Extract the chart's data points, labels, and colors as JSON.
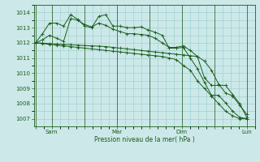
{
  "background_color": "#cce8e8",
  "grid_color": "#99cccc",
  "line_color": "#1a5c1a",
  "xlabel": "Pression niveau de la mer( hPa )",
  "ylim": [
    1006.5,
    1014.5
  ],
  "yticks": [
    1007,
    1008,
    1009,
    1010,
    1011,
    1012,
    1013,
    1014
  ],
  "xtick_labels": [
    "",
    "Sam",
    "",
    "Mar",
    "",
    "Dim",
    "",
    "Lun"
  ],
  "xtick_positions": [
    0,
    1,
    3,
    5,
    7,
    9,
    11,
    13
  ],
  "series": [
    [
      1012.0,
      1012.6,
      1013.3,
      1013.3,
      1013.1,
      1013.85,
      1013.55,
      1013.1,
      1013.0,
      1013.75,
      1013.85,
      1013.1,
      1013.1,
      1013.0,
      1013.0,
      1013.05,
      1012.85,
      1012.7,
      1012.5,
      1011.65,
      1011.65,
      1011.7,
      1011.0,
      1010.3,
      1009.4,
      1008.55,
      1008.55,
      1008.05,
      1007.5,
      1007.1,
      1007.0
    ],
    [
      1012.0,
      1012.2,
      1012.5,
      1012.3,
      1012.1,
      1013.6,
      1013.5,
      1013.2,
      1013.05,
      1013.3,
      1013.15,
      1012.9,
      1012.75,
      1012.6,
      1012.6,
      1012.55,
      1012.5,
      1012.3,
      1012.0,
      1011.7,
      1011.7,
      1011.8,
      1011.5,
      1011.1,
      1009.7,
      1009.2,
      1009.2,
      1009.2,
      1008.6,
      1008.0,
      1007.1
    ],
    [
      1012.0,
      1011.95,
      1011.9,
      1011.85,
      1011.8,
      1011.75,
      1011.7,
      1011.65,
      1011.6,
      1011.55,
      1011.5,
      1011.45,
      1011.4,
      1011.35,
      1011.3,
      1011.25,
      1011.2,
      1011.15,
      1011.1,
      1011.0,
      1010.9,
      1010.5,
      1010.2,
      1009.5,
      1009.0,
      1008.5,
      1008.0,
      1007.5,
      1007.2,
      1007.0,
      1007.0
    ],
    [
      1012.0,
      1011.98,
      1011.95,
      1011.92,
      1011.9,
      1011.88,
      1011.85,
      1011.82,
      1011.8,
      1011.78,
      1011.75,
      1011.7,
      1011.65,
      1011.6,
      1011.55,
      1011.5,
      1011.45,
      1011.4,
      1011.35,
      1011.3,
      1011.25,
      1011.2,
      1011.15,
      1011.1,
      1010.8,
      1010.2,
      1009.3,
      1008.7,
      1008.5,
      1007.9,
      1007.3
    ]
  ]
}
